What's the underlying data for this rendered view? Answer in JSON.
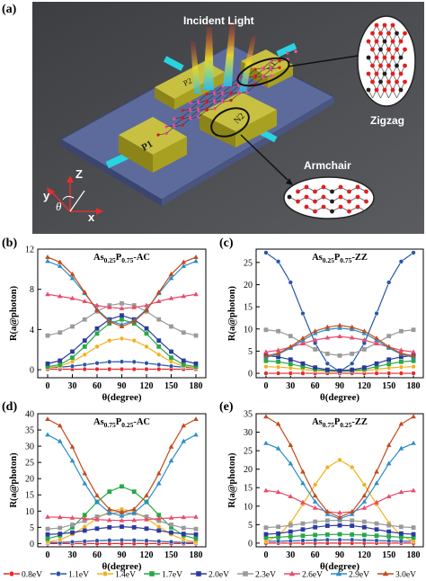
{
  "panel_labels": {
    "a": "(a)",
    "b": "(b)",
    "c": "(c)",
    "d": "(d)",
    "e": "(e)"
  },
  "schematic": {
    "incident_light": "Incident Light",
    "zigzag": "Zigzag",
    "armchair": "Armchair",
    "electrode_p1": "P1",
    "electrode_p2": "P2",
    "electrode_n1": "N1",
    "electrode_n2": "N2",
    "axis_z": "Z",
    "axis_y": "y",
    "axis_x": "x",
    "angle": "θ",
    "colors": {
      "background": "#4b4d50",
      "substrate": "#5c6b9c",
      "electrode": "#a8a020",
      "lead": "#28d4e0",
      "atom_red": "#e02020",
      "atom_black": "#202020"
    }
  },
  "y_axis_label": "R(a@photon)",
  "x_axis_label": "θ(degree)",
  "legend": [
    {
      "label": "0.8eV",
      "color": "#e8262b",
      "marker": "circle"
    },
    {
      "label": "1.1eV",
      "color": "#2556a8",
      "marker": "circle"
    },
    {
      "label": "1.4eV",
      "color": "#f2b01c",
      "marker": "circle"
    },
    {
      "label": "1.7eV",
      "color": "#27a845",
      "marker": "square"
    },
    {
      "label": "2.0eV",
      "color": "#2b3a9c",
      "marker": "square"
    },
    {
      "label": "2.3eV",
      "color": "#9a9a9a",
      "marker": "square"
    },
    {
      "label": "2.6eV",
      "color": "#ea4a6a",
      "marker": "triangle"
    },
    {
      "label": "2.9eV",
      "color": "#2a8ec8",
      "marker": "triangle"
    },
    {
      "label": "3.0eV",
      "color": "#c24a1c",
      "marker": "triangle"
    }
  ],
  "chart_data": [
    {
      "type": "line",
      "title": "As0.25P0.75-AC",
      "x": [
        0,
        15,
        30,
        45,
        60,
        75,
        90,
        105,
        120,
        135,
        150,
        165,
        180
      ],
      "xlabel": "θ(degree)",
      "ylabel": "R(a@photon)",
      "xticks": [
        0,
        30,
        60,
        90,
        120,
        150,
        180
      ],
      "yticks": [
        0,
        4,
        8,
        12
      ],
      "ylim": [
        -0.8,
        12
      ],
      "series": [
        {
          "name": "0.8eV",
          "values": [
            0.05,
            0.05,
            0.05,
            0.05,
            0.05,
            0.05,
            0.05,
            0.05,
            0.05,
            0.05,
            0.05,
            0.05,
            0.05
          ]
        },
        {
          "name": "1.1eV",
          "values": [
            0.2,
            0.25,
            0.35,
            0.5,
            0.65,
            0.78,
            0.8,
            0.78,
            0.65,
            0.5,
            0.35,
            0.25,
            0.2
          ]
        },
        {
          "name": "1.4eV",
          "values": [
            0.2,
            0.35,
            0.8,
            1.5,
            2.3,
            2.9,
            3.1,
            2.9,
            2.3,
            1.5,
            0.8,
            0.35,
            0.2
          ]
        },
        {
          "name": "1.7eV",
          "values": [
            0.3,
            0.5,
            1.2,
            2.3,
            3.6,
            4.6,
            5.0,
            4.6,
            3.6,
            2.3,
            1.2,
            0.5,
            0.3
          ]
        },
        {
          "name": "2.0eV",
          "values": [
            0.6,
            0.9,
            1.8,
            2.9,
            4.1,
            5.0,
            5.4,
            5.0,
            4.1,
            2.9,
            1.8,
            0.9,
            0.6
          ]
        },
        {
          "name": "2.3eV",
          "values": [
            3.4,
            3.7,
            4.3,
            5.0,
            5.8,
            6.4,
            6.6,
            6.4,
            5.8,
            5.0,
            4.3,
            3.7,
            3.4
          ]
        },
        {
          "name": "2.6eV",
          "values": [
            7.5,
            7.3,
            7.1,
            6.8,
            6.4,
            6.2,
            6.1,
            6.2,
            6.4,
            6.8,
            7.1,
            7.3,
            7.5
          ]
        },
        {
          "name": "2.9eV",
          "values": [
            10.8,
            10.3,
            9.1,
            7.6,
            6.0,
            4.9,
            4.5,
            4.9,
            6.0,
            7.6,
            9.1,
            10.3,
            10.8
          ]
        },
        {
          "name": "3.0eV",
          "values": [
            11.2,
            10.7,
            9.5,
            7.7,
            5.9,
            4.8,
            4.3,
            4.8,
            5.9,
            7.7,
            9.5,
            10.7,
            11.2
          ]
        }
      ]
    },
    {
      "type": "line",
      "title": "As0.25P0.75-ZZ",
      "x": [
        0,
        15,
        30,
        45,
        60,
        75,
        90,
        105,
        120,
        135,
        150,
        165,
        180
      ],
      "xlabel": "θ(degree)",
      "ylabel": "R(a@photon)",
      "xticks": [
        0,
        30,
        60,
        90,
        120,
        150,
        180
      ],
      "yticks": [
        0,
        5,
        10,
        15,
        20,
        25
      ],
      "ylim": [
        -1,
        28
      ],
      "series": [
        {
          "name": "0.8eV",
          "values": [
            0,
            0,
            0,
            0,
            0,
            0,
            0,
            0,
            0,
            0,
            0,
            0,
            0
          ]
        },
        {
          "name": "1.1eV",
          "values": [
            27.2,
            25.2,
            20.5,
            13.5,
            6.8,
            2.2,
            0.4,
            2.2,
            6.8,
            13.5,
            20.5,
            25.2,
            27.2
          ]
        },
        {
          "name": "1.4eV",
          "values": [
            1.5,
            1.4,
            1.2,
            0.9,
            0.6,
            0.5,
            0.4,
            0.5,
            0.6,
            0.9,
            1.2,
            1.4,
            1.5
          ]
        },
        {
          "name": "1.7eV",
          "values": [
            2.8,
            2.6,
            2.1,
            1.5,
            0.9,
            0.6,
            0.5,
            0.6,
            0.9,
            1.5,
            2.1,
            2.6,
            2.8
          ]
        },
        {
          "name": "2.0eV",
          "values": [
            4.0,
            3.7,
            3.1,
            2.2,
            1.3,
            0.8,
            0.6,
            0.8,
            1.3,
            2.2,
            3.1,
            3.7,
            4.0
          ]
        },
        {
          "name": "2.3eV",
          "values": [
            9.8,
            9.5,
            8.4,
            6.8,
            5.4,
            4.4,
            4.0,
            4.4,
            5.4,
            6.8,
            8.4,
            9.5,
            9.8
          ]
        },
        {
          "name": "2.6eV",
          "values": [
            4.8,
            5.2,
            5.9,
            6.7,
            7.5,
            8.0,
            8.3,
            8.0,
            7.5,
            6.7,
            5.9,
            5.2,
            4.8
          ]
        },
        {
          "name": "2.9eV",
          "values": [
            3.6,
            4.3,
            5.7,
            7.5,
            9.0,
            9.9,
            10.2,
            9.9,
            9.0,
            7.5,
            5.7,
            4.3,
            3.6
          ]
        },
        {
          "name": "3.0eV",
          "values": [
            3.9,
            4.5,
            6.0,
            7.9,
            9.5,
            10.4,
            10.8,
            10.4,
            9.5,
            7.9,
            6.0,
            4.5,
            3.9
          ]
        }
      ]
    },
    {
      "type": "line",
      "title": "As0.75P0.25-AC",
      "x": [
        0,
        15,
        30,
        45,
        60,
        75,
        90,
        105,
        120,
        135,
        150,
        165,
        180
      ],
      "xlabel": "θ(degree)",
      "ylabel": "R(a@photon)",
      "xticks": [
        0,
        30,
        60,
        90,
        120,
        150,
        180
      ],
      "yticks": [
        0,
        5,
        10,
        15,
        20,
        25,
        30,
        35,
        40
      ],
      "ylim": [
        -1,
        40
      ],
      "series": [
        {
          "name": "0.8eV",
          "values": [
            0,
            0,
            0,
            0,
            0,
            0,
            0,
            0,
            0,
            0,
            0,
            0,
            0
          ]
        },
        {
          "name": "1.1eV",
          "values": [
            0.3,
            0.35,
            0.5,
            0.7,
            0.9,
            1.0,
            1.05,
            1.0,
            0.9,
            0.7,
            0.5,
            0.35,
            0.3
          ]
        },
        {
          "name": "1.4eV",
          "values": [
            0.5,
            1.2,
            2.8,
            5.2,
            7.8,
            9.8,
            10.6,
            9.8,
            7.8,
            5.2,
            2.8,
            1.2,
            0.5
          ]
        },
        {
          "name": "1.7eV",
          "values": [
            1.5,
            2.5,
            5.0,
            8.8,
            12.8,
            16.0,
            17.6,
            16.0,
            12.8,
            8.8,
            5.0,
            2.5,
            1.5
          ]
        },
        {
          "name": "2.0eV",
          "values": [
            2.8,
            3.0,
            3.4,
            4.0,
            4.6,
            5.0,
            5.2,
            5.0,
            4.6,
            4.0,
            3.4,
            3.0,
            2.8
          ]
        },
        {
          "name": "2.3eV",
          "values": [
            4.5,
            4.8,
            5.8,
            7.0,
            8.3,
            9.3,
            9.6,
            9.3,
            8.3,
            7.0,
            5.8,
            4.8,
            4.5
          ]
        },
        {
          "name": "2.6eV",
          "values": [
            8.2,
            8.1,
            7.9,
            7.7,
            7.4,
            7.2,
            7.1,
            7.2,
            7.4,
            7.7,
            7.9,
            8.1,
            8.2
          ]
        },
        {
          "name": "2.9eV",
          "values": [
            33.5,
            31.5,
            25.5,
            18.5,
            12.8,
            9.5,
            8.5,
            9.5,
            12.8,
            18.5,
            25.5,
            31.5,
            33.5
          ]
        },
        {
          "name": "3.0eV",
          "values": [
            38.3,
            36.3,
            29.8,
            21.6,
            14.8,
            10.6,
            9.6,
            10.6,
            14.8,
            21.6,
            29.8,
            36.3,
            38.3
          ]
        }
      ]
    },
    {
      "type": "line",
      "title": "As0.75P0.25-ZZ",
      "x": [
        0,
        15,
        30,
        45,
        60,
        75,
        90,
        105,
        120,
        135,
        150,
        165,
        180
      ],
      "xlabel": "θ(degree)",
      "ylabel": "R(a@photon)",
      "xticks": [
        0,
        30,
        60,
        90,
        120,
        150,
        180
      ],
      "yticks": [
        0,
        5,
        10,
        15,
        20,
        25,
        30,
        35
      ],
      "ylim": [
        -1,
        35
      ],
      "series": [
        {
          "name": "0.8eV",
          "values": [
            0,
            0,
            0,
            0,
            0,
            0,
            0,
            0,
            0,
            0,
            0,
            0,
            0
          ]
        },
        {
          "name": "1.1eV",
          "values": [
            0.5,
            0.5,
            0.6,
            0.7,
            0.8,
            0.9,
            0.9,
            0.9,
            0.8,
            0.7,
            0.6,
            0.5,
            0.5
          ]
        },
        {
          "name": "1.4eV",
          "values": [
            0.5,
            2.0,
            5.5,
            10.5,
            15.8,
            20.5,
            22.5,
            20.5,
            15.8,
            10.5,
            5.5,
            2.0,
            0.5
          ]
        },
        {
          "name": "1.7eV",
          "values": [
            1.5,
            1.6,
            1.8,
            2.0,
            2.2,
            2.3,
            2.4,
            2.3,
            2.2,
            2.0,
            1.8,
            1.6,
            1.5
          ]
        },
        {
          "name": "2.0eV",
          "values": [
            2.4,
            2.6,
            3.1,
            3.7,
            4.3,
            4.7,
            4.8,
            4.7,
            4.3,
            3.7,
            3.1,
            2.6,
            2.4
          ]
        },
        {
          "name": "2.3eV",
          "values": [
            4.2,
            4.4,
            4.8,
            5.3,
            5.8,
            6.1,
            6.2,
            6.1,
            5.8,
            5.3,
            4.8,
            4.4,
            4.2
          ]
        },
        {
          "name": "2.6eV",
          "values": [
            14.2,
            13.8,
            12.6,
            11.0,
            9.5,
            8.5,
            8.2,
            8.5,
            9.5,
            11.0,
            12.6,
            13.8,
            14.2
          ]
        },
        {
          "name": "2.9eV",
          "values": [
            27.0,
            25.6,
            21.5,
            16.2,
            11.2,
            7.8,
            6.6,
            7.8,
            11.2,
            16.2,
            21.5,
            25.6,
            27.0
          ]
        },
        {
          "name": "3.0eV",
          "values": [
            34.2,
            32.2,
            26.5,
            19.3,
            12.8,
            8.5,
            7.0,
            8.5,
            12.8,
            19.3,
            26.5,
            32.2,
            34.2
          ]
        }
      ]
    }
  ]
}
